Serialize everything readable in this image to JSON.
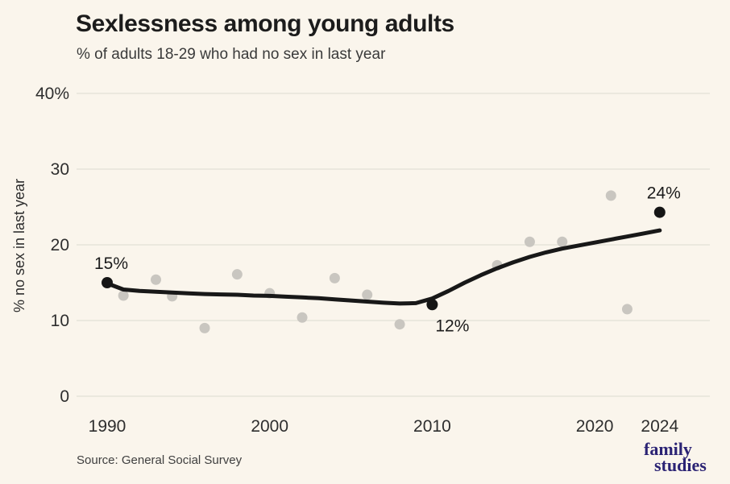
{
  "header": {
    "title": "Sexlessness among young adults",
    "subtitle": "% of adults 18-29 who had no sex in last year"
  },
  "footer": {
    "source": "Source: General Social Survey",
    "logo_line1": "family",
    "logo_line2": "studies"
  },
  "colors": {
    "background": "#faf5ec",
    "gridline": "#e6e3da",
    "axis_text": "#2e2e2e",
    "trend_line": "#181818",
    "observed_dot": "#c9c6c0",
    "highlight_dot": "#151515",
    "annotation_text": "#1c1c1c",
    "logo": "#2b2374"
  },
  "chart_data": {
    "type": "scatter",
    "title": "Sexlessness among young adults",
    "subtitle": "% of adults 18-29 who had no sex in last year",
    "xlabel": "",
    "ylabel": "% no sex in last year",
    "xlim": [
      1988.1,
      2027.1
    ],
    "ylim": [
      0,
      40
    ],
    "grid": "horizontal",
    "yticks": [
      {
        "value": 40,
        "label": "40%"
      },
      {
        "value": 30,
        "label": "30"
      },
      {
        "value": 20,
        "label": "20"
      },
      {
        "value": 10,
        "label": "10"
      },
      {
        "value": 0,
        "label": "0"
      }
    ],
    "xticks": [
      {
        "value": 1990,
        "label": "1990"
      },
      {
        "value": 2000,
        "label": "2000"
      },
      {
        "value": 2010,
        "label": "2010"
      },
      {
        "value": 2020,
        "label": "2020"
      },
      {
        "value": 2024,
        "label": "2024"
      }
    ],
    "observed_points": [
      {
        "year": 1991,
        "value": 13.3
      },
      {
        "year": 1993,
        "value": 15.4
      },
      {
        "year": 1994,
        "value": 13.2
      },
      {
        "year": 1996,
        "value": 9.0
      },
      {
        "year": 1998,
        "value": 16.1
      },
      {
        "year": 2000,
        "value": 13.6
      },
      {
        "year": 2002,
        "value": 10.4
      },
      {
        "year": 2004,
        "value": 15.6
      },
      {
        "year": 2006,
        "value": 13.4
      },
      {
        "year": 2008,
        "value": 9.5
      },
      {
        "year": 2014,
        "value": 17.3
      },
      {
        "year": 2016,
        "value": 20.4
      },
      {
        "year": 2018,
        "value": 20.4
      },
      {
        "year": 2021,
        "value": 26.5
      },
      {
        "year": 2022,
        "value": 11.5
      }
    ],
    "highlight_points": [
      {
        "year": 1990,
        "value": 15.0,
        "label": "15%",
        "label_pos": "above"
      },
      {
        "year": 2010,
        "value": 12.1,
        "label": "12%",
        "label_pos": "below"
      },
      {
        "year": 2024,
        "value": 24.3,
        "label": "24%",
        "label_pos": "above"
      }
    ],
    "trend_series": {
      "name": "smoothed trend",
      "points": [
        [
          1990,
          14.9
        ],
        [
          1991,
          14.1
        ],
        [
          1992,
          13.9
        ],
        [
          1993,
          13.8
        ],
        [
          1994,
          13.7
        ],
        [
          1995,
          13.6
        ],
        [
          1996,
          13.5
        ],
        [
          1997,
          13.45
        ],
        [
          1998,
          13.4
        ],
        [
          1999,
          13.3
        ],
        [
          2000,
          13.25
        ],
        [
          2001,
          13.15
        ],
        [
          2002,
          13.05
        ],
        [
          2003,
          12.95
        ],
        [
          2004,
          12.8
        ],
        [
          2005,
          12.65
        ],
        [
          2006,
          12.5
        ],
        [
          2007,
          12.35
        ],
        [
          2008,
          12.25
        ],
        [
          2009,
          12.3
        ],
        [
          2010,
          12.9
        ],
        [
          2011,
          13.9
        ],
        [
          2012,
          15.0
        ],
        [
          2013,
          16.0
        ],
        [
          2014,
          16.9
        ],
        [
          2015,
          17.7
        ],
        [
          2016,
          18.4
        ],
        [
          2017,
          19.0
        ],
        [
          2018,
          19.5
        ],
        [
          2019,
          19.9
        ],
        [
          2020,
          20.3
        ],
        [
          2021,
          20.7
        ],
        [
          2022,
          21.1
        ],
        [
          2023,
          21.5
        ],
        [
          2024,
          21.9
        ]
      ]
    }
  }
}
